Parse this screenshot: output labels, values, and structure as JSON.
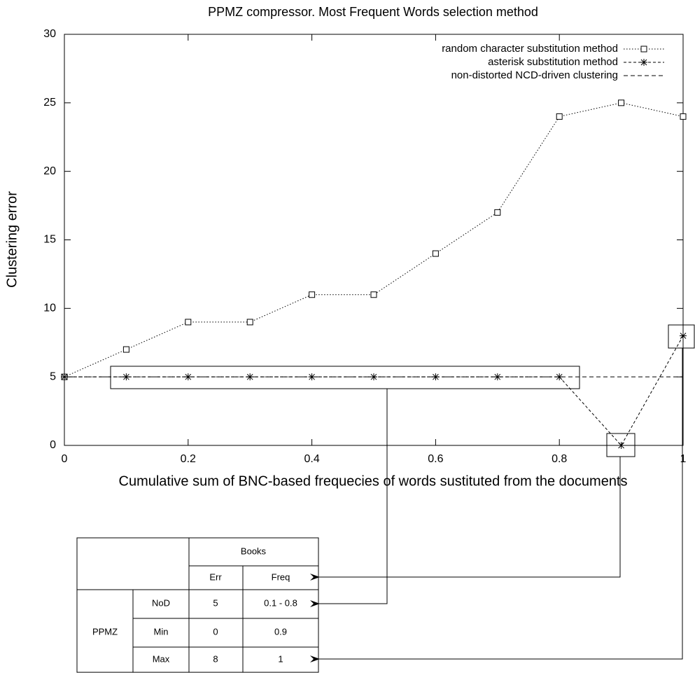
{
  "chart_data": {
    "type": "line",
    "title": "PPMZ compressor. Most Frequent Words selection method",
    "xlabel": "Cumulative sum of BNC-based frequecies of words sustituted from the documents",
    "ylabel": "Clustering error",
    "x": [
      0,
      0.1,
      0.2,
      0.3,
      0.4,
      0.5,
      0.6,
      0.7,
      0.8,
      0.9,
      1
    ],
    "series": [
      {
        "name": "random character substitution method",
        "color": "#000000",
        "line_style": "dotted",
        "marker": "square",
        "values": [
          5,
          7,
          9,
          9,
          11,
          11,
          14,
          17,
          24,
          25,
          24
        ]
      },
      {
        "name": "asterisk substitution method",
        "color": "#000000",
        "line_style": "dashdot",
        "marker": "asterisk",
        "values": [
          5,
          5,
          5,
          5,
          5,
          5,
          5,
          5,
          5,
          0,
          8
        ]
      },
      {
        "name": "non-distorted NCD-driven clustering",
        "color": "#000000",
        "line_style": "dashed",
        "values": [
          5,
          5,
          5,
          5,
          5,
          5,
          5,
          5,
          5,
          5,
          5
        ]
      }
    ],
    "xlim": [
      0,
      1
    ],
    "xticks": [
      0,
      0.2,
      0.4,
      0.6,
      0.8,
      1
    ],
    "ylim": [
      0,
      30
    ],
    "yticks": [
      0,
      5,
      10,
      15,
      20,
      25,
      30
    ],
    "legend": "top-right"
  },
  "table": {
    "group_header": "Books",
    "columns": [
      "Err",
      "Freq"
    ],
    "row_group": "PPMZ",
    "rows": [
      [
        "NoD",
        5,
        "0.1 - 0.8"
      ],
      [
        "Min",
        0,
        0.9
      ],
      [
        "Max",
        8,
        1
      ]
    ]
  }
}
